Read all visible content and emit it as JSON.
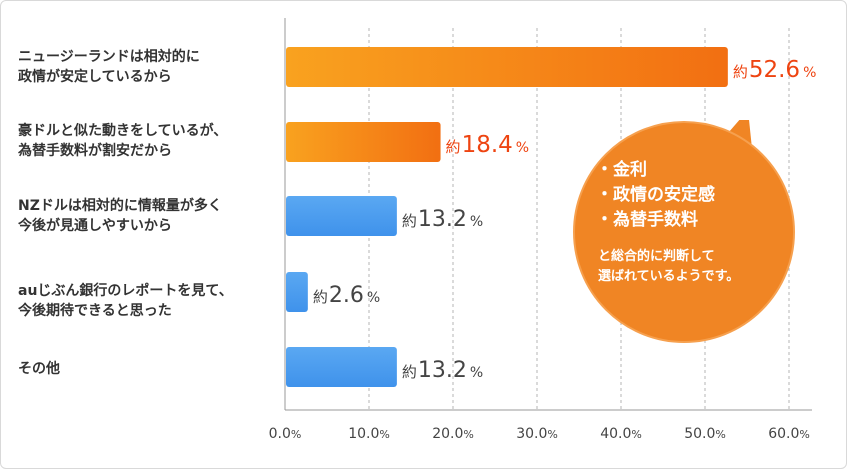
{
  "chart_data": {
    "type": "bar",
    "orientation": "horizontal",
    "categories": [
      "ニュージーランドは相対的に\n政情が安定しているから",
      "豪ドルと似た動きをしているが、\n為替手数料が割安だから",
      "NZドルは相対的に情報量が多く\n今後が見通しやすいから",
      "auじぶん銀行のレポートを見て、\n今後期待できると思った",
      "その他"
    ],
    "values": [
      52.6,
      18.4,
      13.2,
      2.6,
      13.2
    ],
    "value_prefix": "約",
    "value_suffix": "%",
    "bar_colors": [
      "#f57f17",
      "#f57f17",
      "#4c9ef0",
      "#4c9ef0",
      "#4c9ef0"
    ],
    "label_colors": [
      "#ee4411",
      "#ee4411",
      "#444444",
      "#444444",
      "#444444"
    ],
    "xlim": [
      0,
      60
    ],
    "xticks": [
      "0.0%",
      "10.0%",
      "20.0%",
      "30.0%",
      "40.0%",
      "50.0%",
      "60.0%"
    ],
    "grid": "dashed-vertical"
  },
  "callout": {
    "items": [
      "・金利",
      "・政情の安定感",
      "・為替手数料"
    ],
    "note": "と総合的に判断して\n選ばれているようです。",
    "color": "#f08524"
  }
}
